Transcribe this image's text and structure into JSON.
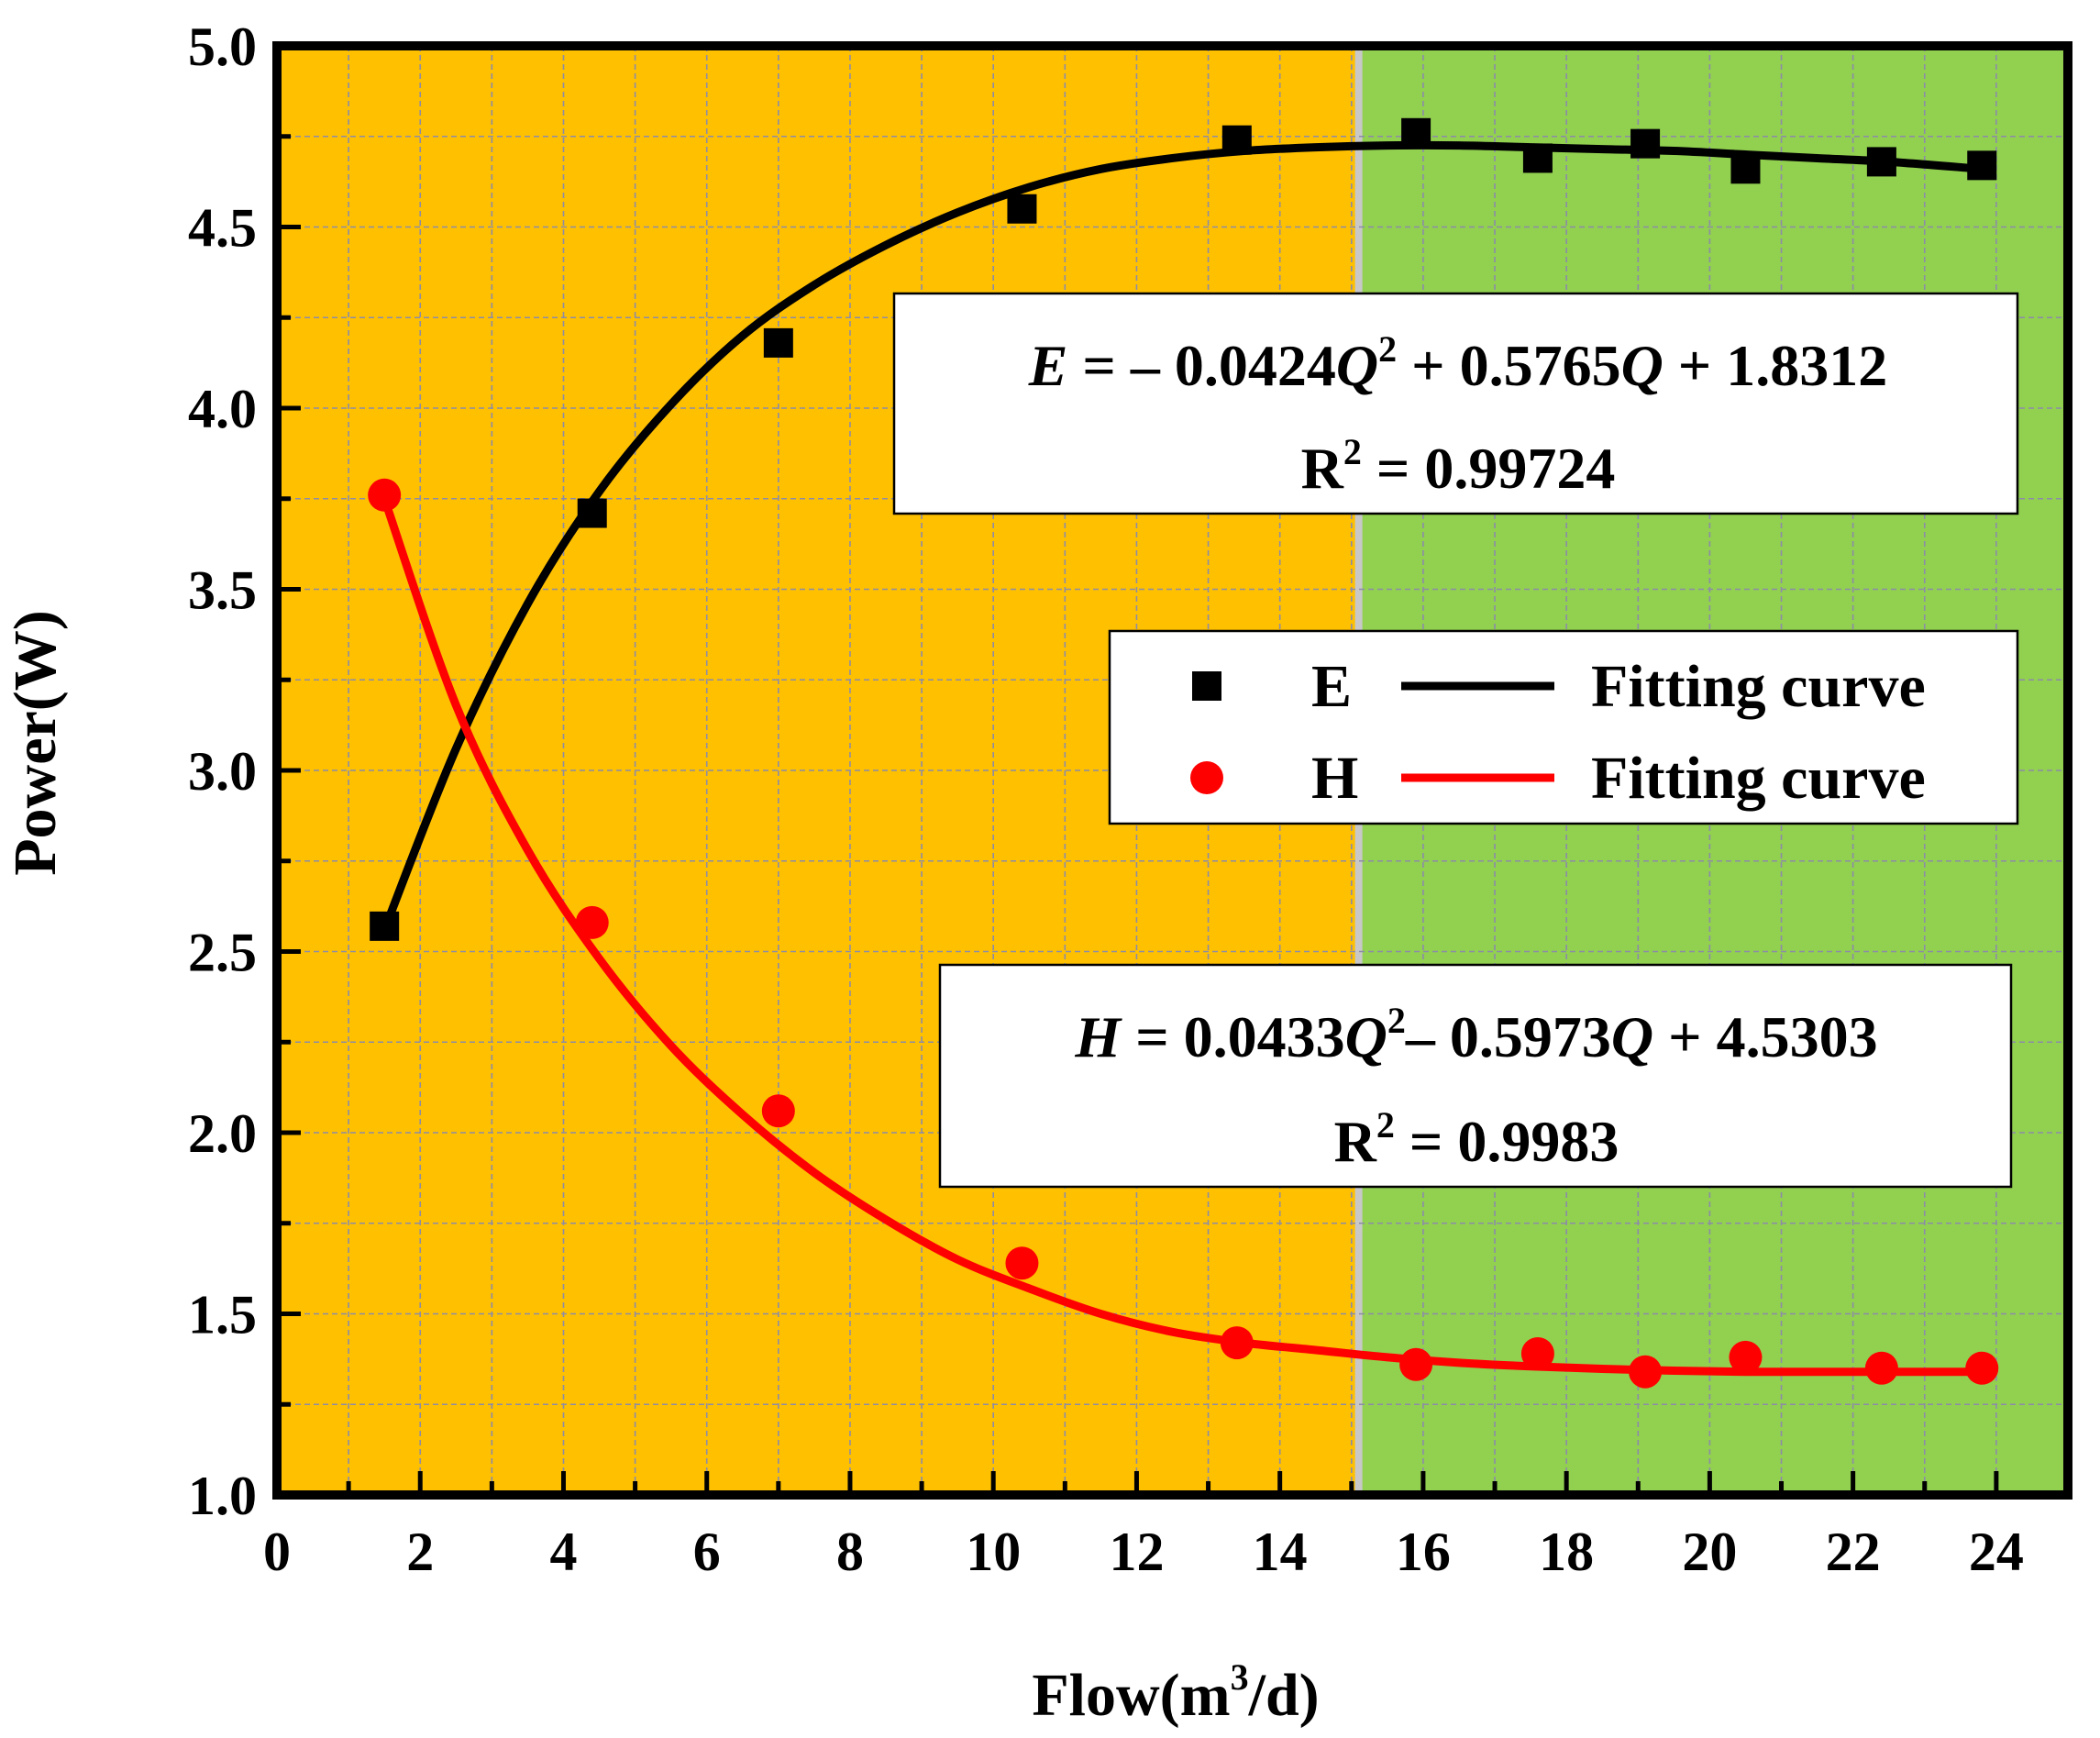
{
  "chart_data": {
    "type": "scatter",
    "title": "",
    "xlabel": "Flow(m",
    "xlabel_sup": "3",
    "xlabel_tail": "/d)",
    "ylabel": "Power(W)",
    "xlim": [
      0,
      25
    ],
    "ylim": [
      1.0,
      5.0
    ],
    "x_ticks": [
      "0",
      "2",
      "4",
      "6",
      "8",
      "10",
      "12",
      "14",
      "16",
      "18",
      "20",
      "22",
      "24"
    ],
    "y_ticks": [
      "1.0",
      "1.5",
      "2.0",
      "2.5",
      "3.0",
      "3.5",
      "4.0",
      "4.5",
      "5.0"
    ],
    "grid": true,
    "legend_position": "right-middle",
    "regions": [
      {
        "x": [
          0,
          15.1
        ],
        "color": "#FFC000"
      },
      {
        "x": [
          15.1,
          25
        ],
        "color": "#92D050"
      }
    ],
    "series": [
      {
        "name": "E",
        "marker": "square",
        "color": "#000000",
        "x": [
          1.5,
          4.4,
          7.0,
          10.4,
          13.4,
          15.9,
          17.6,
          19.1,
          20.5,
          22.4,
          23.8
        ],
        "y": [
          2.57,
          3.71,
          4.18,
          4.55,
          4.74,
          4.76,
          4.69,
          4.73,
          4.66,
          4.68,
          4.67
        ]
      },
      {
        "name": "H",
        "marker": "circle",
        "color": "#FF0000",
        "x": [
          1.5,
          4.4,
          7.0,
          10.4,
          13.4,
          15.9,
          17.6,
          19.1,
          20.5,
          22.4,
          23.8
        ],
        "y": [
          3.76,
          2.58,
          2.06,
          1.64,
          1.42,
          1.36,
          1.39,
          1.34,
          1.38,
          1.35,
          1.35
        ]
      }
    ],
    "fits": [
      {
        "name": "Fitting curve",
        "for": "E",
        "color": "#000000",
        "x": [
          1.5,
          2.5,
          3.5,
          4.5,
          5.5,
          6.5,
          7.5,
          8.5,
          9.5,
          10.5,
          11.5,
          12.5,
          13.5,
          14.5,
          15.5,
          16.5,
          17.5,
          18.5,
          19.5,
          20.5,
          21.5,
          22.5,
          23.8
        ],
        "y": [
          2.56,
          3.06,
          3.46,
          3.77,
          4.01,
          4.2,
          4.34,
          4.45,
          4.54,
          4.61,
          4.66,
          4.69,
          4.71,
          4.72,
          4.725,
          4.725,
          4.72,
          4.715,
          4.71,
          4.7,
          4.69,
          4.68,
          4.66
        ]
      },
      {
        "name": "Fitting curve",
        "for": "H",
        "color": "#FF0000",
        "x": [
          1.5,
          2.5,
          3.5,
          4.5,
          5.5,
          6.5,
          7.5,
          8.5,
          9.5,
          10.5,
          11.5,
          12.5,
          13.5,
          14.5,
          15.5,
          16.5,
          17.5,
          18.5,
          19.5,
          20.5,
          21.5,
          22.5,
          23.8
        ],
        "y": [
          3.75,
          3.18,
          2.78,
          2.48,
          2.24,
          2.05,
          1.89,
          1.76,
          1.65,
          1.57,
          1.5,
          1.45,
          1.42,
          1.4,
          1.38,
          1.365,
          1.355,
          1.348,
          1.343,
          1.34,
          1.34,
          1.34,
          1.34
        ]
      }
    ],
    "annotations": [
      {
        "lines": [
          [
            {
              "t": "E",
              "i": true
            },
            {
              "t": " = – 0.0424"
            },
            {
              "t": "Q",
              "i": true
            },
            {
              "t": "2",
              "sup": true
            },
            {
              "t": " + 0.5765"
            },
            {
              "t": "Q",
              "i": true
            },
            {
              "t": " + 1.8312"
            }
          ],
          [
            {
              "t": "R"
            },
            {
              "t": "2",
              "sup": true
            },
            {
              "t": " = 0.99724"
            }
          ]
        ]
      },
      {
        "lines": [
          [
            {
              "t": "H",
              "i": true
            },
            {
              "t": " = 0.0433"
            },
            {
              "t": "Q",
              "i": true
            },
            {
              "t": "2",
              "sup": true
            },
            {
              "t": "– 0.5973"
            },
            {
              "t": "Q",
              "i": true
            },
            {
              "t": " + 4.5303"
            }
          ],
          [
            {
              "t": "R"
            },
            {
              "t": "2",
              "sup": true
            },
            {
              "t": " = 0.9983"
            }
          ]
        ]
      }
    ],
    "legend": [
      {
        "marker_label": "E",
        "marker": "square",
        "color": "#000000",
        "line_label": "Fitting curve"
      },
      {
        "marker_label": "H",
        "marker": "circle",
        "color": "#FF0000",
        "line_label": "Fitting curve"
      }
    ]
  }
}
